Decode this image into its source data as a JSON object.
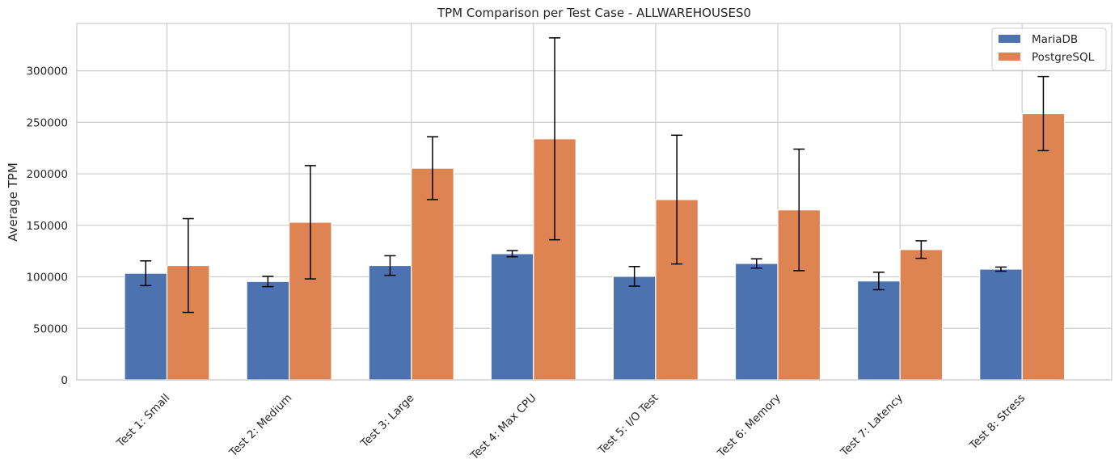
{
  "chart_data": {
    "type": "bar",
    "title": "TPM Comparison per Test Case - ALLWAREHOUSES0",
    "xlabel": "",
    "ylabel": "Average TPM",
    "categories": [
      "Test 1: Small",
      "Test 2: Medium",
      "Test 3: Large",
      "Test 4: Max CPU",
      "Test 5: I/O Test",
      "Test 6: Memory",
      "Test 7: Latency",
      "Test 8: Stress"
    ],
    "series": [
      {
        "name": "MariaDB",
        "color": "#4c72b0",
        "values": [
          103500,
          95500,
          111000,
          122500,
          100500,
          113000,
          96000,
          107500
        ],
        "errors": [
          12000,
          5000,
          9500,
          3000,
          9500,
          4500,
          8500,
          2000
        ]
      },
      {
        "name": "PostgreSQL",
        "color": "#dd8452",
        "values": [
          111000,
          153000,
          205500,
          234000,
          175000,
          165000,
          126500,
          258500
        ],
        "errors": [
          45500,
          55000,
          30500,
          98000,
          62500,
          59000,
          8500,
          36000
        ]
      }
    ],
    "ylim": [
      0,
      346000
    ],
    "yticks": [
      0,
      50000,
      100000,
      150000,
      200000,
      250000,
      300000
    ],
    "grid": true,
    "legend_position": "top-right",
    "colors": {
      "grid": "#cccccc",
      "axes_edge": "#cccccc",
      "text": "#262626",
      "errorbar": "#000000"
    }
  }
}
